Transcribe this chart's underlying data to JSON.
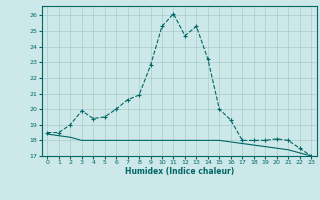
{
  "title": "",
  "xlabel": "Humidex (Indice chaleur)",
  "ylabel": "",
  "bg_color": "#cce8e8",
  "grid_color": "#aacccc",
  "line_color": "#006666",
  "xlim": [
    -0.5,
    23.5
  ],
  "ylim": [
    17,
    26.6
  ],
  "yticks": [
    17,
    18,
    19,
    20,
    21,
    22,
    23,
    24,
    25,
    26
  ],
  "xticks": [
    0,
    1,
    2,
    3,
    4,
    5,
    6,
    7,
    8,
    9,
    10,
    11,
    12,
    13,
    14,
    15,
    16,
    17,
    18,
    19,
    20,
    21,
    22,
    23
  ],
  "line1_x": [
    0,
    1,
    2,
    3,
    4,
    5,
    6,
    7,
    8,
    9,
    10,
    11,
    12,
    13,
    14,
    15,
    16,
    17,
    18,
    19,
    20,
    21,
    22,
    23
  ],
  "line1_y": [
    18.5,
    18.5,
    19.0,
    19.9,
    19.4,
    19.5,
    20.0,
    20.6,
    20.9,
    22.8,
    25.3,
    26.1,
    24.7,
    25.3,
    23.2,
    20.0,
    19.3,
    18.0,
    18.0,
    18.0,
    18.1,
    18.0,
    17.5,
    17.0
  ],
  "line2_x": [
    0,
    1,
    2,
    3,
    4,
    5,
    6,
    7,
    8,
    9,
    10,
    11,
    12,
    13,
    14,
    15,
    16,
    17,
    18,
    19,
    20,
    21,
    22,
    23
  ],
  "line2_y": [
    18.4,
    18.3,
    18.2,
    18.0,
    18.0,
    18.0,
    18.0,
    18.0,
    18.0,
    18.0,
    18.0,
    18.0,
    18.0,
    18.0,
    18.0,
    18.0,
    17.9,
    17.8,
    17.7,
    17.6,
    17.5,
    17.4,
    17.2,
    17.0
  ]
}
